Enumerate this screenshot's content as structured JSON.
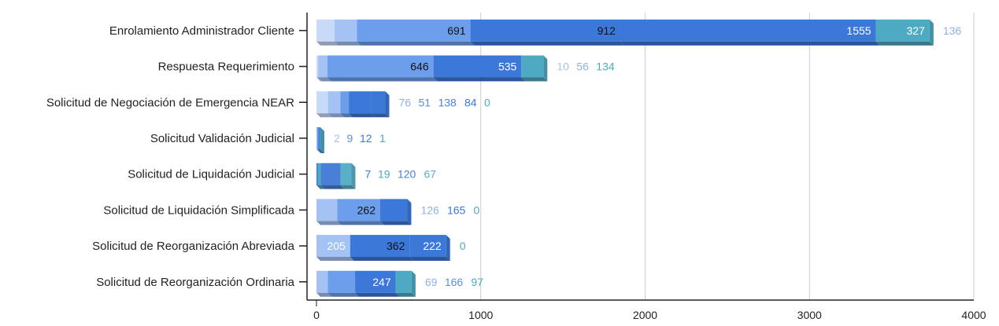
{
  "chart_data": {
    "type": "bar",
    "orientation": "horizontal",
    "stacked": true,
    "style": "3d",
    "categories": [
      "Enrolamiento Administrador Cliente",
      "Respuesta Requerimiento",
      "Solicitud de Negociación de Emergencia NEAR",
      "Solicitud Validación Judicial",
      "Solicitud de Liquidación Judicial",
      "Solicitud de Liquidación Simplificada",
      "Solicitud de Reorganización Abreviada",
      "Solicitud de Reorganización Ordinaria"
    ],
    "segments": [
      [
        {
          "value": 110,
          "label": "",
          "shade": 0
        },
        {
          "value": 136,
          "label": "136",
          "shade": 1
        },
        {
          "value": 691,
          "label": "691",
          "shade": 2
        },
        {
          "value": 912,
          "label": "912",
          "shade": 3
        },
        {
          "value": 1555,
          "label": "1555",
          "shade": 4
        },
        {
          "value": 327,
          "label": "327",
          "shade": 5
        }
      ],
      [
        {
          "value": 10,
          "label": "10",
          "shade": 0
        },
        {
          "value": 56,
          "label": "56",
          "shade": 1
        },
        {
          "value": 646,
          "label": "646",
          "shade": 2
        },
        {
          "value": 535,
          "label": "535",
          "shade": 4
        },
        {
          "value": 134,
          "label": "134",
          "shade": 5
        }
      ],
      [
        {
          "value": 70,
          "label": "",
          "shade": 0
        },
        {
          "value": 76,
          "label": "76",
          "shade": 1
        },
        {
          "value": 51,
          "label": "51",
          "shade": 2
        },
        {
          "value": 138,
          "label": "138",
          "shade": 3
        },
        {
          "value": 84,
          "label": "84",
          "shade": 4
        },
        {
          "value": 0,
          "label": "0",
          "shade": 5
        }
      ],
      [
        {
          "value": 2,
          "label": "2",
          "shade": 0
        },
        {
          "value": 9,
          "label": "9",
          "shade": 2
        },
        {
          "value": 12,
          "label": "12",
          "shade": 4
        },
        {
          "value": 1,
          "label": "1",
          "shade": 5
        }
      ],
      [
        {
          "value": 7,
          "label": "7",
          "shade": 4
        },
        {
          "value": 19,
          "label": "19",
          "shade": 5
        },
        {
          "value": 120,
          "label": "120",
          "shade": 6
        },
        {
          "value": 67,
          "label": "67",
          "shade": 7
        }
      ],
      [
        {
          "value": 126,
          "label": "126",
          "shade": 1
        },
        {
          "value": 262,
          "label": "262",
          "shade": 2
        },
        {
          "value": 165,
          "label": "165",
          "shade": 4
        },
        {
          "value": 0,
          "label": "0",
          "shade": 5
        }
      ],
      [
        {
          "value": 205,
          "label": "205",
          "shade": 1
        },
        {
          "value": 362,
          "label": "362",
          "shade": 3
        },
        {
          "value": 222,
          "label": "222",
          "shade": 4
        },
        {
          "value": 0,
          "label": "0",
          "shade": 5
        }
      ],
      [
        {
          "value": 69,
          "label": "69",
          "shade": 1
        },
        {
          "value": 166,
          "label": "166",
          "shade": 2
        },
        {
          "value": 247,
          "label": "247",
          "shade": 4
        },
        {
          "value": 97,
          "label": "97",
          "shade": 5
        }
      ]
    ],
    "x_ticks": [
      "0",
      "1000",
      "2000",
      "3000",
      "4000"
    ],
    "xlim": [
      0,
      4000
    ],
    "grid": "vertical",
    "legend": "none",
    "title": "",
    "xlabel": "",
    "ylabel": "",
    "colors": {
      "shades": [
        "#c9daf8",
        "#a4c2f4",
        "#6d9eeb",
        "#3c78d8",
        "#3c78d8",
        "#4eaac2",
        "#4a7fd8",
        "#5bb0c9"
      ],
      "grid": "#cccccc",
      "axis": "#222222"
    }
  }
}
